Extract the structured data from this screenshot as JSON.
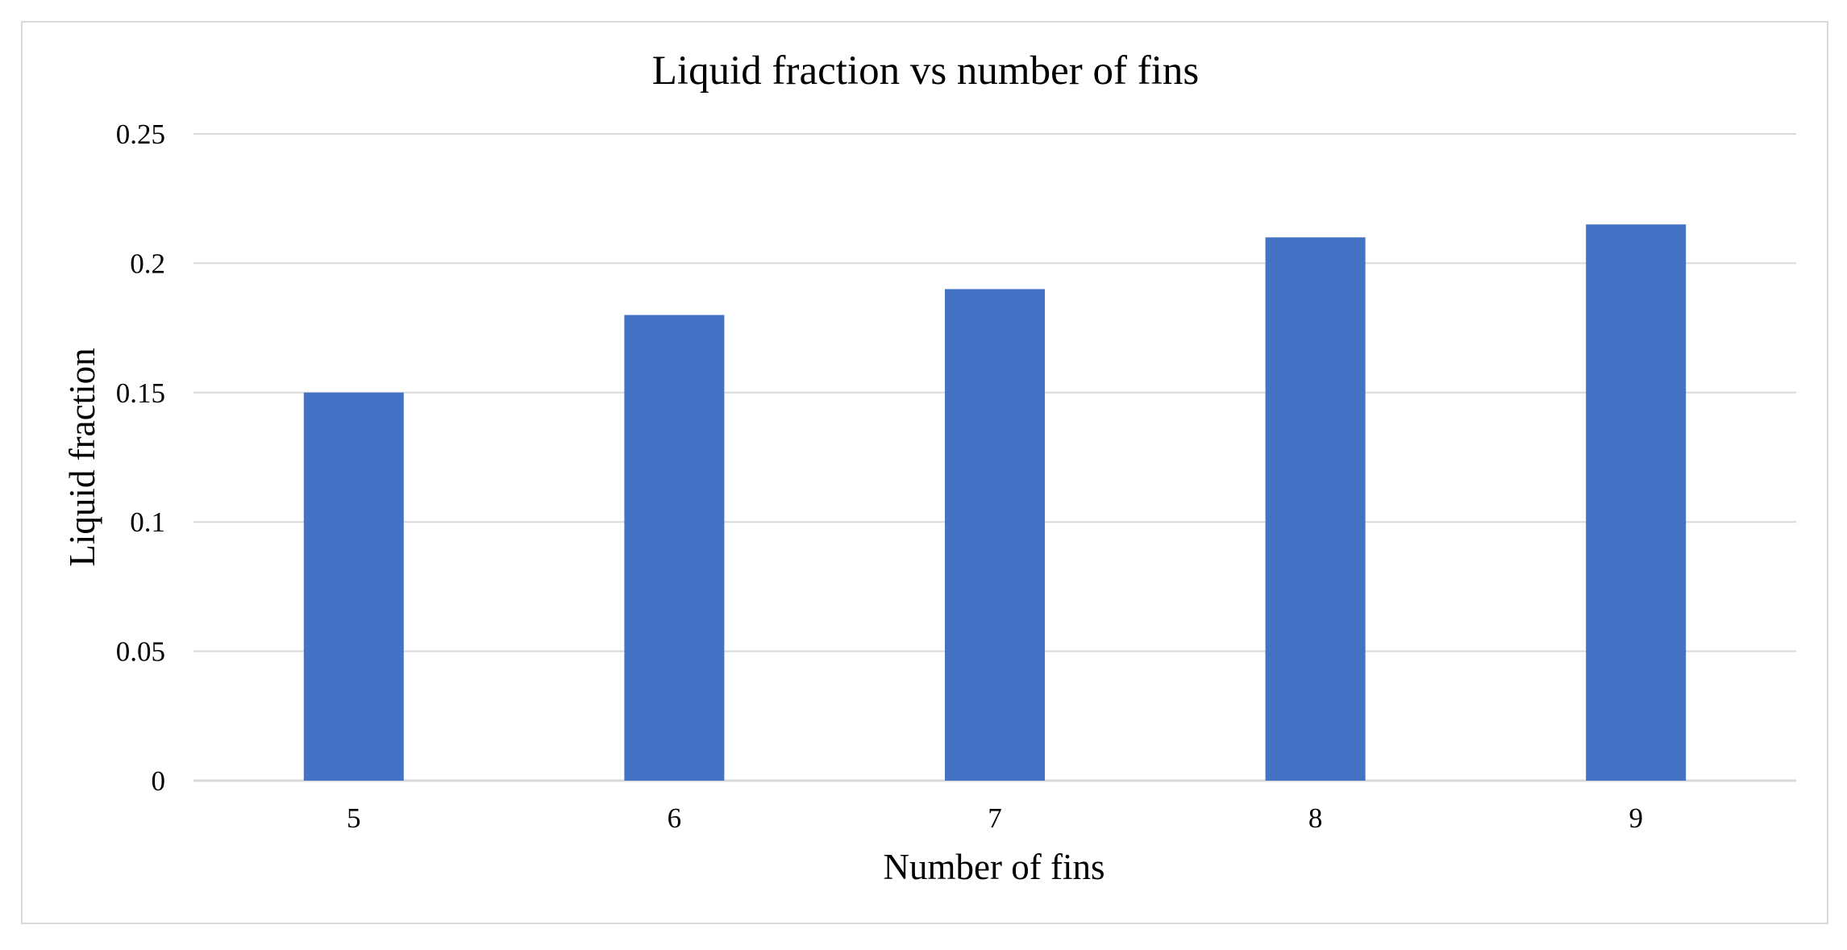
{
  "chart_data": {
    "type": "bar",
    "title": "Liquid fraction vs number of fins",
    "xlabel": "Number of fins",
    "ylabel": "Liquid fraction",
    "categories": [
      "5",
      "6",
      "7",
      "8",
      "9"
    ],
    "values": [
      0.15,
      0.18,
      0.19,
      0.21,
      0.215
    ],
    "ylim": [
      0,
      0.25
    ],
    "yticks": [
      "0",
      "0.05",
      "0.1",
      "0.15",
      "0.2",
      "0.25"
    ],
    "grid": true,
    "legend": "none",
    "bar_color": "#4472C4",
    "gridline_color": "#d9d9d9"
  }
}
